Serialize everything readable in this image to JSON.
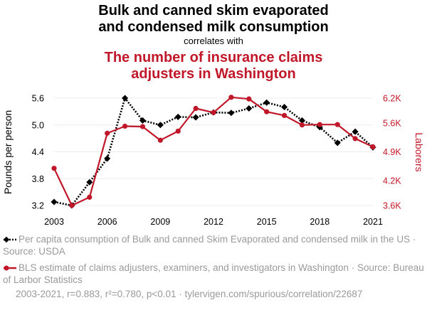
{
  "header": {
    "title_line1": "Bulk and canned skim evaporated",
    "title_line2": "and condensed milk consumption",
    "connector": "correlates with",
    "title2_line1": "The number of insurance claims",
    "title2_line2": "adjusters in Washington"
  },
  "colors": {
    "series1": "#000000",
    "series2": "#c0182a",
    "muted": "#9a9a9a"
  },
  "chart_data": {
    "type": "line",
    "x": [
      2003,
      2004,
      2005,
      2006,
      2007,
      2008,
      2009,
      2010,
      2011,
      2012,
      2013,
      2014,
      2015,
      2016,
      2017,
      2018,
      2019,
      2020,
      2021
    ],
    "xticks": [
      "2003",
      "2006",
      "2009",
      "2012",
      "2015",
      "2018",
      "2021"
    ],
    "xtick_values": [
      2003,
      2006,
      2009,
      2012,
      2015,
      2018,
      2021
    ],
    "xlim": [
      2003,
      2021
    ],
    "y_left": {
      "label": "Pounds per person",
      "ticks": [
        "3.2",
        "3.8",
        "4.4",
        "5.0",
        "5.6"
      ],
      "tick_values": [
        3.2,
        3.8,
        4.4,
        5.0,
        5.6
      ],
      "ylim": [
        3.2,
        5.6
      ]
    },
    "y_right": {
      "label": "Laborers",
      "ticks": [
        "3.6K",
        "4.2K",
        "4.9K",
        "5.6K",
        "6.2K"
      ],
      "tick_values": [
        3600,
        4200,
        4900,
        5600,
        6200
      ],
      "ylim": [
        3600,
        6200
      ]
    },
    "series": [
      {
        "name": "Per capita consumption of Bulk and canned Skim Evaporated and condensed milk in the US · Source: USDA",
        "axis": "left",
        "style": "dotted",
        "marker": "diamond",
        "values": [
          3.28,
          3.2,
          3.72,
          4.25,
          5.6,
          5.1,
          5.0,
          5.18,
          5.17,
          5.28,
          5.27,
          5.37,
          5.5,
          5.4,
          5.1,
          4.95,
          4.6,
          4.85,
          4.5
        ]
      },
      {
        "name": "BLS estimate of claims adjusters, examiners, and investigators in Washington · Source: Bureau of Larbor Statistics",
        "axis": "right",
        "style": "solid",
        "marker": "circle",
        "values": [
          4500,
          3600,
          3800,
          5350,
          5520,
          5510,
          5180,
          5400,
          5950,
          5850,
          6220,
          6180,
          5870,
          5780,
          5550,
          5560,
          5560,
          5220,
          5020
        ]
      }
    ],
    "grid": "horizontal"
  },
  "legend": {
    "item1": "Per capita consumption of Bulk and canned Skim Evaporated and condensed milk in the US · Source: USDA",
    "item2": "BLS estimate of claims adjusters, examiners, and investigators in Washington · Source: Bureau of Larbor Statistics"
  },
  "footer": "2003-2021, r=0.883, r²=0.780, p<0.01 · tylervigen.com/spurious/correlation/22687"
}
